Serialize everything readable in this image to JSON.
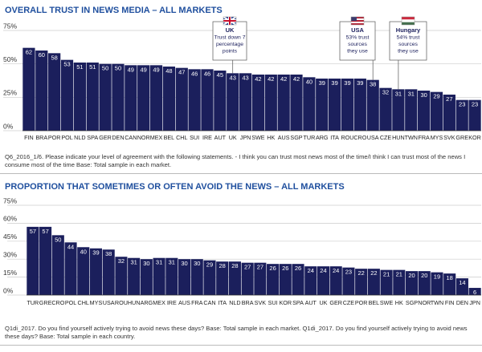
{
  "chart_data": [
    {
      "type": "bar",
      "title": "OVERALL TRUST IN NEWS MEDIA – ALL MARKETS",
      "categories": [
        "FIN",
        "BRA",
        "POR",
        "POL",
        "NLD",
        "SPA",
        "GER",
        "DEN",
        "CAN",
        "NOR",
        "MEX",
        "BEL",
        "CHL",
        "SUI",
        "IRE",
        "AUT",
        "UK",
        "JPN",
        "SWE",
        "HK",
        "AUS",
        "SGP",
        "TUR",
        "ARG",
        "ITA",
        "ROU",
        "CRO",
        "USA",
        "CZE",
        "HUN",
        "TWN",
        "FRA",
        "MYS",
        "SVK",
        "GRE",
        "KOR"
      ],
      "values": [
        62,
        60,
        58,
        53,
        51,
        51,
        50,
        50,
        49,
        49,
        49,
        48,
        47,
        46,
        46,
        45,
        43,
        43,
        42,
        42,
        42,
        42,
        40,
        39,
        39,
        39,
        39,
        38,
        32,
        31,
        31,
        30,
        29,
        27,
        23,
        23
      ],
      "color": "#1b1f5c",
      "ylim": [
        0,
        75
      ],
      "yticks": [
        {
          "value": 0,
          "label": "0%"
        },
        {
          "value": 25,
          "label": "25%"
        },
        {
          "value": 50,
          "label": "50%"
        },
        {
          "value": 75,
          "label": "75%"
        }
      ],
      "grid": true,
      "annotations": [
        {
          "lines": [
            "UK",
            "Trust down 7",
            "percentage",
            "points"
          ]
        },
        {
          "lines": [
            "USA",
            "53% trust",
            "sources",
            "they use"
          ]
        },
        {
          "lines": [
            "Hungary",
            "54% trust",
            "sources",
            "they use"
          ]
        }
      ],
      "note": "Q6_2016_1/6. Please indicate your level of agreement with the following statements. - I think you can trust most news most of the time/I think I can trust most of the news I consume most of the time Base: Total sample in each market."
    },
    {
      "type": "bar",
      "title": "PROPORTION THAT SOMETIMES OR OFTEN AVOID THE NEWS – ALL MARKETS",
      "categories": [
        "TUR",
        "GRE",
        "CRO",
        "POL",
        "CHL",
        "MYS",
        "USA",
        "ROU",
        "HUN",
        "ARG",
        "MEX",
        "IRE",
        "AUS",
        "FRA",
        "CAN",
        "ITA",
        "NLD",
        "BRA",
        "SVK",
        "SUI",
        "KOR",
        "SPA",
        "AUT",
        "UK",
        "GER",
        "CZE",
        "POR",
        "BEL",
        "SWE",
        "HK",
        "SGP",
        "NOR",
        "TWN",
        "FIN",
        "DEN",
        "JPN"
      ],
      "values": [
        57,
        57,
        50,
        44,
        40,
        39,
        38,
        32,
        31,
        30,
        31,
        31,
        30,
        30,
        29,
        28,
        28,
        27,
        27,
        26,
        26,
        26,
        24,
        24,
        24,
        23,
        22,
        22,
        21,
        21,
        20,
        20,
        19,
        18,
        14,
        6
      ],
      "color": "#1b1f5c",
      "ylim": [
        0,
        75
      ],
      "yticks": [
        {
          "value": 0,
          "label": "0%"
        },
        {
          "value": 15,
          "label": "15%"
        },
        {
          "value": 30,
          "label": "30%"
        },
        {
          "value": 45,
          "label": "45%"
        },
        {
          "value": 60,
          "label": "60%"
        },
        {
          "value": 75,
          "label": "75%"
        }
      ],
      "grid": true,
      "note": "Q1di_2017. Do you find yourself actively trying to avoid news these days? Base: Total sample in each market. Q1di_2017. Do you find yourself actively trying to avoid news these days? Base: Total sample in each country."
    }
  ]
}
